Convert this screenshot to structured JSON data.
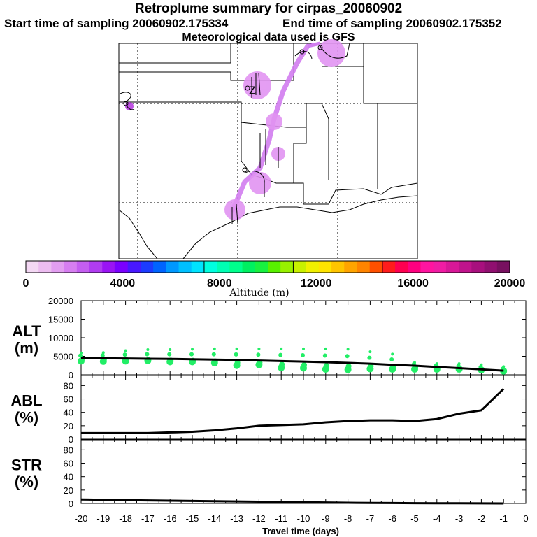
{
  "header": {
    "title": "Retroplume summary for cirpas_20060902",
    "start_label": "Start time of sampling 20060902.175334",
    "end_label": "End time of sampling 20060902.175352",
    "met_label": "Meteorological data used is GFS"
  },
  "colorbar": {
    "ticks": [
      "0",
      "4000",
      "8000",
      "12000",
      "16000",
      "20000"
    ],
    "label": "Altitude (m)",
    "colors": [
      "#f4d8f4",
      "#ecbcf0",
      "#e29ef0",
      "#d67ef0",
      "#c45ef0",
      "#b03cf0",
      "#9a14f4",
      "#7a00ff",
      "#4818ff",
      "#1c3cff",
      "#0064ff",
      "#0098ff",
      "#00c0ff",
      "#00e4ff",
      "#00ffe0",
      "#00ffb4",
      "#00ff8c",
      "#00f060",
      "#18f040",
      "#58f000",
      "#98f000",
      "#c8f000",
      "#f0f000",
      "#ffe400",
      "#ffc400",
      "#ffa400",
      "#ff8400",
      "#ff5000",
      "#ff1c1c",
      "#ff0050",
      "#ff0080",
      "#ff14a0",
      "#f01ca4",
      "#d81898",
      "#c0148c",
      "#a8107e",
      "#901070",
      "#781060"
    ]
  },
  "map": {
    "colors": {
      "plume": "#d17cf0",
      "blob": "#e294f2",
      "source": "#b840e0"
    }
  },
  "chart_data": [
    {
      "type": "line",
      "title": "ALT (m)",
      "ylabel_lines": [
        "ALT",
        "(m)"
      ],
      "ylim": [
        0,
        20000
      ],
      "yticks": [
        "0",
        "5000",
        "10000",
        "15000",
        "20000"
      ],
      "x": [
        -20,
        -19,
        -18,
        -17,
        -16,
        -15,
        -14,
        -13,
        -12,
        -11,
        -10,
        -9,
        -8,
        -7,
        -6,
        -5,
        -4,
        -3,
        -2,
        -1
      ],
      "series": [
        {
          "name": "mean altitude",
          "values": [
            4500,
            4450,
            4400,
            4350,
            4300,
            4200,
            4100,
            4000,
            3850,
            3700,
            3550,
            3400,
            3200,
            3000,
            2700,
            2450,
            2100,
            1800,
            1450,
            1100
          ]
        },
        {
          "name": "particle top",
          "values": [
            5900,
            6000,
            6500,
            6800,
            6800,
            6900,
            7000,
            7000,
            7000,
            7000,
            7000,
            7000,
            6900,
            6200,
            5600,
            3300,
            3000,
            3000,
            2700,
            2200
          ]
        },
        {
          "name": "particle bottom",
          "values": [
            3700,
            3600,
            3700,
            3800,
            3500,
            3500,
            3200,
            2500,
            2700,
            1900,
            1800,
            1500,
            1400,
            1600,
            1500,
            1500,
            1500,
            1500,
            1300,
            1000
          ]
        }
      ],
      "point_color": "#22ee66"
    },
    {
      "type": "line",
      "title": "ABL (%)",
      "ylabel_lines": [
        "ABL",
        "(%)"
      ],
      "ylim": [
        0,
        95
      ],
      "yticks": [
        "0",
        "20",
        "40",
        "60",
        "80"
      ],
      "x": [
        -20,
        -19,
        -18,
        -17,
        -16,
        -15,
        -14,
        -13,
        -12,
        -11,
        -10,
        -9,
        -8,
        -7,
        -6,
        -5,
        -4,
        -3,
        -2,
        -1
      ],
      "series": [
        {
          "name": "ABL fraction",
          "values": [
            9,
            9,
            9,
            9,
            10,
            11,
            13,
            16,
            20,
            21,
            22,
            25,
            27,
            28,
            28,
            27,
            30,
            38,
            43,
            75
          ]
        }
      ]
    },
    {
      "type": "line",
      "title": "STR (%)",
      "ylabel_lines": [
        "STR",
        "(%)"
      ],
      "ylim": [
        0,
        95
      ],
      "yticks": [
        "0",
        "20",
        "40",
        "60",
        "80"
      ],
      "x": [
        -20,
        -19,
        -18,
        -17,
        -16,
        -15,
        -14,
        -13,
        -12,
        -11,
        -10,
        -9,
        -8,
        -7,
        -6,
        -5,
        -4,
        -3,
        -2,
        -1
      ],
      "xticks": [
        "-20",
        "-19",
        "-18",
        "-17",
        "-16",
        "-15",
        "-14",
        "-13",
        "-12",
        "-11",
        "-10",
        "-9",
        "-8",
        "-7",
        "-6",
        "-5",
        "-4",
        "-3",
        "-2",
        "-1",
        "0"
      ],
      "xlim": [
        -20,
        0
      ],
      "xlabel": "Travel time (days)",
      "series": [
        {
          "name": "stratospheric fraction",
          "values": [
            6,
            5.5,
            5,
            4.6,
            4.2,
            3.8,
            3.4,
            3,
            2.6,
            2.2,
            1.8,
            1.4,
            1,
            0.8,
            0.6,
            0.4,
            0.3,
            0.2,
            0.1,
            0
          ]
        }
      ]
    }
  ]
}
